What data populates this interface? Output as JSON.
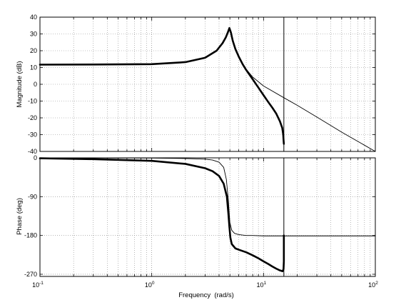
{
  "chart_data": [
    {
      "type": "line",
      "panel": "magnitude",
      "ylabel": "Magnitude (dB)",
      "xscale": "log",
      "xlim": [
        0.1,
        100
      ],
      "ylim": [
        -40,
        40
      ],
      "yticks": [
        -40,
        -30,
        -20,
        -10,
        0,
        10,
        20,
        30,
        40
      ],
      "ytick_labels": [
        "-40",
        "-30",
        "-20",
        "-10",
        "0",
        "10",
        "20",
        "30",
        "40"
      ],
      "grid": true,
      "vline_x": 15.2,
      "series": [
        {
          "style": "thick",
          "x": [
            0.1,
            0.3,
            1,
            2,
            3,
            3.8,
            4.3,
            4.6,
            4.8,
            4.95,
            5.1,
            5.3,
            5.6,
            6,
            6.5,
            7,
            8,
            9,
            10,
            11,
            12,
            13,
            14,
            14.7,
            15.0,
            15.1,
            15.2
          ],
          "y": [
            11.7,
            11.8,
            12,
            13.2,
            15.8,
            20,
            24.5,
            28,
            31,
            33.5,
            31,
            26,
            21,
            16.5,
            12,
            8.5,
            3,
            -2,
            -6.5,
            -10.5,
            -14,
            -17.5,
            -22,
            -26,
            -30,
            -33,
            -35.5
          ]
        },
        {
          "style": "thin",
          "x": [
            0.1,
            0.3,
            1,
            2,
            3,
            3.8,
            4.3,
            4.6,
            4.8,
            4.95,
            5.1,
            5.3,
            5.6,
            6,
            6.5,
            7,
            8,
            10,
            15.2,
            20,
            30,
            50,
            100
          ],
          "y": [
            11.7,
            11.8,
            12,
            13.2,
            15.8,
            20,
            24.5,
            28,
            31,
            33.5,
            31,
            26,
            21,
            16.5,
            12,
            9,
            4.3,
            -1,
            -8,
            -12.5,
            -19.5,
            -28.5,
            -40
          ]
        }
      ]
    },
    {
      "type": "line",
      "panel": "phase",
      "ylabel": "Phase (deg)",
      "xlabel": "Frequency  (rad/s)",
      "xscale": "log",
      "xlim": [
        0.1,
        100
      ],
      "ylim": [
        -275,
        0
      ],
      "yticks": [
        0,
        -90,
        -180,
        -270
      ],
      "ytick_labels": [
        "0",
        "-90",
        "-180",
        "-270"
      ],
      "xtick_exponents": [
        "-1",
        "0",
        "1",
        "2"
      ],
      "xtick_base": "10",
      "grid": true,
      "vline_x": 15.2,
      "series": [
        {
          "style": "thick",
          "x": [
            0.1,
            0.3,
            1,
            2,
            3,
            3.5,
            4,
            4.4,
            4.7,
            4.85,
            4.95,
            5.05,
            5.2,
            5.6,
            6,
            7,
            8,
            9,
            10,
            11,
            12,
            13,
            14,
            14.8,
            15.1,
            15.2,
            15.2
          ],
          "y": [
            -1,
            -3,
            -7,
            -14,
            -24,
            -31,
            -42,
            -60,
            -90,
            -130,
            -160,
            -185,
            -200,
            -210,
            -213,
            -219,
            -226,
            -233,
            -240,
            -246,
            -252,
            -257,
            -261,
            -263,
            -258,
            -240,
            -180
          ]
        },
        {
          "style": "thin",
          "x": [
            0.1,
            1,
            2,
            3,
            3.5,
            4,
            4.4,
            4.65,
            4.85,
            5,
            5.2,
            5.5,
            6,
            7,
            8,
            10,
            15.2,
            100
          ],
          "y": [
            0,
            -0.5,
            -1.5,
            -3,
            -5,
            -10,
            -22,
            -50,
            -100,
            -150,
            -168,
            -175,
            -178,
            -180,
            -180,
            -181,
            -181,
            -181
          ]
        }
      ]
    }
  ]
}
